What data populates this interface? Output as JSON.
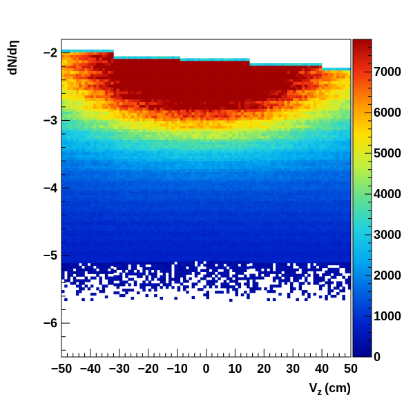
{
  "chart_data": {
    "type": "heatmap",
    "title": "",
    "xlabel": "V",
    "xlabel_sub": "z",
    "xlabel_unit": "(cm)",
    "ylabel": "dN/dη",
    "xlim": [
      -50,
      50
    ],
    "ylim": [
      -6.5,
      -1.8
    ],
    "x_ticks": [
      -50,
      -40,
      -30,
      -20,
      -10,
      0,
      10,
      20,
      30,
      40,
      50
    ],
    "x_tick_labels": [
      "−50",
      "−40",
      "−30",
      "−20",
      "−10",
      "0",
      "10",
      "20",
      "30",
      "40",
      "50"
    ],
    "y_ticks": [
      -6,
      -5,
      -4,
      -3,
      -2
    ],
    "y_tick_labels": [
      "−6",
      "−5",
      "−4",
      "−3",
      "−2"
    ],
    "z_range": [
      0,
      7800
    ],
    "colorbar_ticks": [
      0,
      1000,
      2000,
      3000,
      4000,
      5000,
      6000,
      7000
    ],
    "colorbar_tick_labels": [
      "0",
      "1000",
      "2000",
      "3000",
      "4000",
      "5000",
      "6000",
      "7000"
    ],
    "palette": [
      "#00008f",
      "#0020c8",
      "#0060e0",
      "#00a8f0",
      "#20d0e0",
      "#60e090",
      "#c0f040",
      "#ffe000",
      "#ff9000",
      "#f03010",
      "#a00000"
    ],
    "distribution": {
      "upper_edge_steps": [
        {
          "x_from": -50,
          "x_to": -32,
          "dndeta": -1.95
        },
        {
          "x_from": -32,
          "x_to": -9,
          "dndeta": -2.05
        },
        {
          "x_from": -9,
          "x_to": 15,
          "dndeta": -2.08
        },
        {
          "x_from": 15,
          "x_to": 40,
          "dndeta": -2.15
        },
        {
          "x_from": 40,
          "x_to": 50,
          "dndeta": -2.22
        }
      ],
      "lower_edge_range": [
        -5.7,
        -5.1
      ],
      "peak": {
        "vz": -2,
        "dndeta": -2.3,
        "count": 7800
      }
    }
  }
}
